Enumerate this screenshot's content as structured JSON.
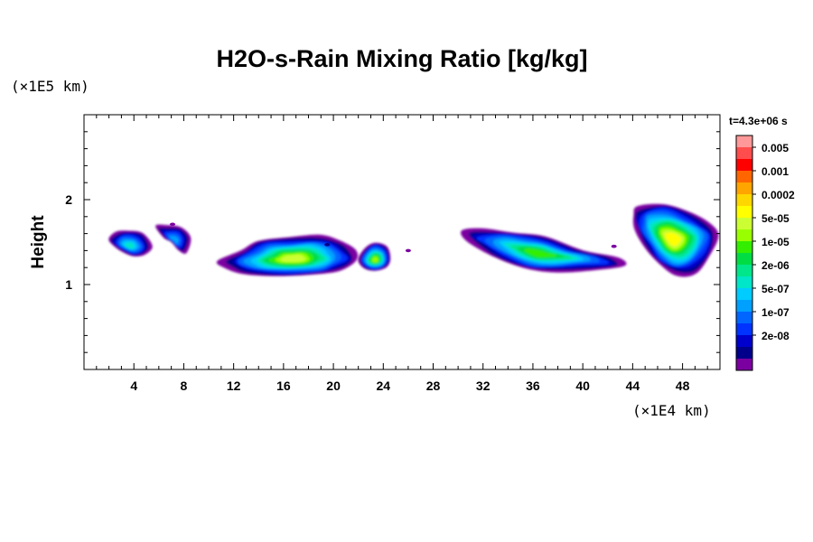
{
  "chart_data": {
    "type": "contour",
    "title": "H2O-s-Rain Mixing Ratio [kg/kg]",
    "xlabel": "",
    "ylabel": "Height",
    "x_unit": "(×1E4 km)",
    "y_unit": "(×1E5 km)",
    "xlim": [
      0,
      51
    ],
    "ylim": [
      0,
      3
    ],
    "x_ticks": [
      4,
      8,
      12,
      16,
      20,
      24,
      28,
      32,
      36,
      40,
      44,
      48
    ],
    "y_ticks": [
      1,
      2
    ],
    "x_minor_step": 1,
    "y_minor_step": 0.2,
    "time_label": "t=4.3e+06 s",
    "colorbar": {
      "levels": [
        "0.005",
        "0.001",
        "0.0002",
        "5e-05",
        "1e-05",
        "2e-06",
        "5e-07",
        "1e-07",
        "2e-08"
      ],
      "colors": [
        "#ff9999",
        "#ff4d4d",
        "#ff0000",
        "#ff6600",
        "#ffa500",
        "#ffd700",
        "#ffff00",
        "#ccff33",
        "#99ff00",
        "#33ee00",
        "#00dd44",
        "#00e68a",
        "#00e6c8",
        "#00ccff",
        "#00a0ff",
        "#0066ff",
        "#0033ff",
        "#0000cc",
        "#00008b",
        "#7b00a0"
      ]
    },
    "clouds": [
      {
        "x": [
          2.0,
          2.6,
          3.5,
          4.7,
          5.4,
          4.9,
          4.0,
          3.2,
          2.4
        ],
        "y": [
          1.53,
          1.62,
          1.64,
          1.6,
          1.45,
          1.35,
          1.33,
          1.38,
          1.45
        ],
        "max_level": 7
      },
      {
        "x": [
          5.8,
          6.6,
          7.8,
          8.5,
          8.2,
          7.6,
          7.0,
          6.4
        ],
        "y": [
          1.68,
          1.7,
          1.68,
          1.55,
          1.38,
          1.4,
          1.5,
          1.55
        ],
        "max_level": 5
      },
      {
        "x": [
          11.0,
          12.5,
          14.0,
          16.5,
          19.0,
          20.5,
          21.5,
          22.0,
          21.0,
          19.5,
          16.0,
          13.0,
          11.5
        ],
        "y": [
          1.28,
          1.4,
          1.52,
          1.55,
          1.57,
          1.52,
          1.42,
          1.3,
          1.2,
          1.13,
          1.1,
          1.13,
          1.2
        ],
        "max_level": 12
      },
      {
        "x": [
          22.0,
          22.6,
          23.4,
          24.3,
          24.6,
          24.2,
          23.3,
          22.4
        ],
        "y": [
          1.3,
          1.44,
          1.5,
          1.44,
          1.3,
          1.2,
          1.16,
          1.2
        ],
        "max_level": 11
      },
      {
        "x": [
          30.2,
          32.0,
          34.5,
          37.0,
          40.0,
          42.5,
          43.5,
          41.0,
          38.0,
          35.5,
          33.0,
          31.0
        ],
        "y": [
          1.62,
          1.66,
          1.62,
          1.56,
          1.4,
          1.32,
          1.22,
          1.18,
          1.15,
          1.18,
          1.32,
          1.5
        ],
        "max_level": 10
      },
      {
        "x": [
          44.0,
          44.5,
          46.5,
          48.5,
          50.0,
          50.8,
          50.3,
          49.0,
          47.5,
          46.0,
          45.0,
          44.2
        ],
        "y": [
          1.8,
          1.92,
          1.96,
          1.85,
          1.72,
          1.58,
          1.35,
          1.15,
          1.12,
          1.25,
          1.45,
          1.65
        ],
        "max_level": 13
      }
    ]
  }
}
